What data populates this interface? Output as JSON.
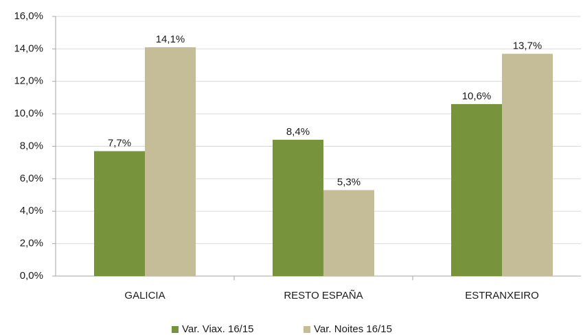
{
  "chart_data": {
    "type": "bar",
    "categories": [
      "GALICIA",
      "RESTO ESPAÑA",
      "ESTRANXEIRO"
    ],
    "series": [
      {
        "name": "Var. Viax. 16/15",
        "color": "#77933c",
        "values": [
          7.7,
          8.4,
          10.6
        ],
        "value_labels": [
          "7,7%",
          "8,4%",
          "10,6%"
        ]
      },
      {
        "name": "Var. Noites 16/15",
        "color": "#c4bd97",
        "values": [
          14.1,
          5.3,
          13.7
        ],
        "value_labels": [
          "14,1%",
          "5,3%",
          "13,7%"
        ]
      }
    ],
    "ylim": [
      0,
      16
    ],
    "yticks": [
      {
        "value": 0,
        "label": "0,0%"
      },
      {
        "value": 2,
        "label": "2,0%"
      },
      {
        "value": 4,
        "label": "4,0%"
      },
      {
        "value": 6,
        "label": "6,0%"
      },
      {
        "value": 8,
        "label": "8,0%"
      },
      {
        "value": 10,
        "label": "10,0%"
      },
      {
        "value": 12,
        "label": "12,0%"
      },
      {
        "value": 14,
        "label": "14,0%"
      },
      {
        "value": 16,
        "label": "16,0%"
      }
    ],
    "grid": true,
    "legend": "bottom"
  }
}
